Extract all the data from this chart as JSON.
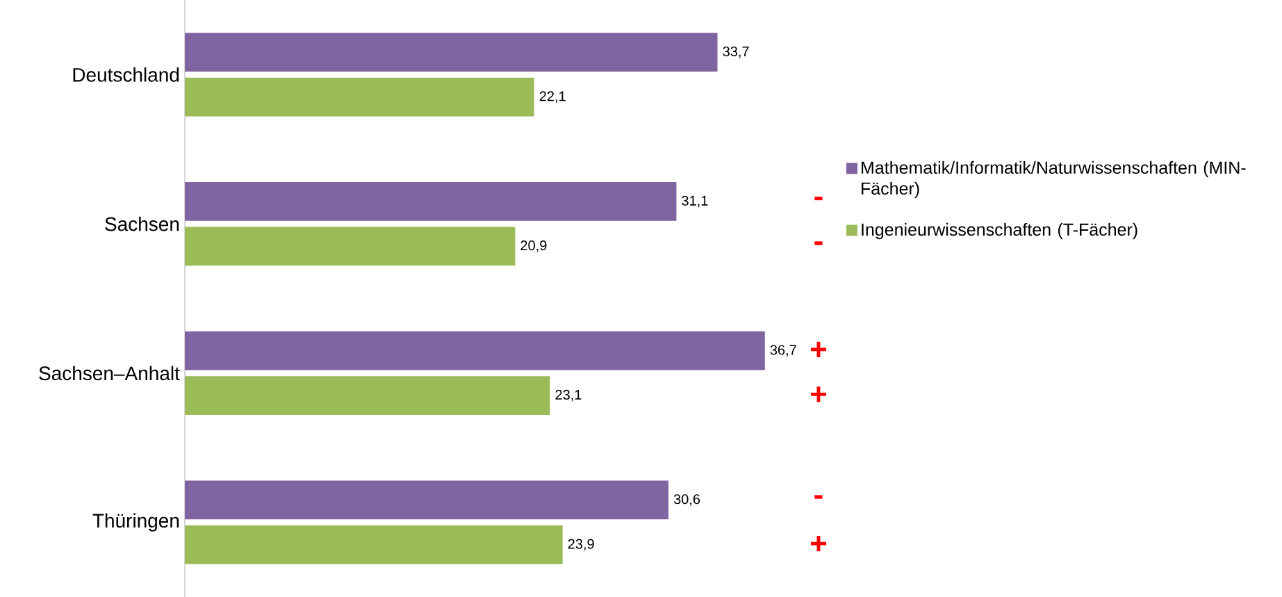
{
  "chart_data": {
    "type": "bar",
    "orientation": "horizontal",
    "categories": [
      "Deutschland",
      "Sachsen",
      "Sachsen–Anhalt",
      "Thüringen"
    ],
    "series": [
      {
        "name": "Mathematik/Informatik/Naturwissenschaften (MIN-Fächer)",
        "color": "#8064a2",
        "values": [
          33.7,
          31.1,
          36.7,
          30.6
        ],
        "value_labels": [
          "33,7",
          "31,1",
          "36,7",
          "30,6"
        ]
      },
      {
        "name": "Ingenieurwissenschaften (T-Fächer)",
        "color": "#9bbb59",
        "values": [
          22.1,
          20.9,
          23.1,
          23.9
        ],
        "value_labels": [
          "22,1",
          "20,9",
          "23,1",
          "23,9"
        ]
      }
    ],
    "annotations": [
      "-",
      "-",
      "+",
      "+",
      "-",
      "+"
    ],
    "legend": "right"
  }
}
